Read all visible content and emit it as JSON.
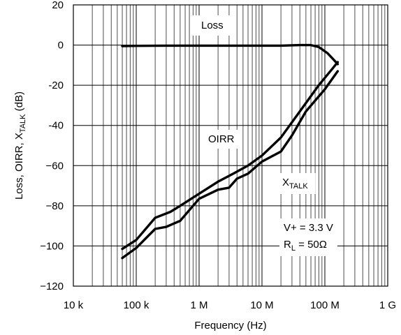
{
  "chart_data": {
    "type": "line",
    "title": "",
    "xlabel": "Frequency (Hz)",
    "ylabel_parts": {
      "main": "Loss, OIRR, X",
      "sub": "TALK",
      "unit": " (dB)"
    },
    "x_scale": "log",
    "xlim": [
      10000,
      1000000000
    ],
    "ylim": [
      -120,
      20
    ],
    "grid": true,
    "x_ticks": [
      {
        "value": 10000,
        "label": "10 k"
      },
      {
        "value": 100000,
        "label": "100 k"
      },
      {
        "value": 1000000,
        "label": "1 M"
      },
      {
        "value": 10000000,
        "label": "10 M"
      },
      {
        "value": 100000000,
        "label": "100 M"
      },
      {
        "value": 1000000000,
        "label": "1 G"
      }
    ],
    "y_ticks": [
      {
        "value": 20,
        "label": "20"
      },
      {
        "value": 0,
        "label": "0"
      },
      {
        "value": -20,
        "label": "-20"
      },
      {
        "value": -40,
        "label": "-40"
      },
      {
        "value": -60,
        "label": "−60"
      },
      {
        "value": -80,
        "label": "−80"
      },
      {
        "value": -100,
        "label": "−100"
      },
      {
        "value": -120,
        "label": "−120"
      }
    ],
    "series": [
      {
        "key": "loss",
        "x": [
          60000,
          100000,
          300000,
          1000000,
          3000000,
          10000000,
          20000000,
          40000000,
          60000000,
          80000000,
          110000000,
          140000000,
          160000000
        ],
        "y": [
          -0.5,
          -0.4,
          -0.3,
          -0.3,
          -0.3,
          -0.3,
          -0.3,
          0.0,
          0.0,
          -1.0,
          -4.0,
          -7.5,
          -9.5
        ]
      },
      {
        "key": "oirr",
        "x": [
          60000,
          100000,
          200000,
          350000,
          500000,
          1000000,
          2000000,
          3500000,
          6000000,
          10000000,
          20000000,
          40000000,
          80000000,
          130000000,
          160000000
        ],
        "y": [
          -101.5,
          -97,
          -86,
          -83,
          -80,
          -74,
          -68,
          -64,
          -60,
          -55,
          -46,
          -33,
          -20,
          -12,
          -8.5
        ]
      },
      {
        "key": "xtalk",
        "x": [
          60000,
          100000,
          200000,
          300000,
          500000,
          1000000,
          2000000,
          3000000,
          4000000,
          6000000,
          10000000,
          20000000,
          30000000,
          50000000,
          100000000,
          160000000
        ],
        "y": [
          -106,
          -101,
          -91.5,
          -90.5,
          -87.5,
          -76.5,
          -72,
          -71,
          -66.5,
          -64,
          -58,
          -53,
          -45,
          -33,
          -22,
          -13
        ]
      }
    ],
    "annotations": {
      "loss": "Loss",
      "oirr": "OIRR",
      "xtalk_main": "X",
      "xtalk_sub": "TALK",
      "cond_v": "V+ = 3.3 V",
      "cond_r_main": "R",
      "cond_r_sub": "L",
      "cond_r_value": " = 50Ω"
    },
    "colors": {
      "line": "#000000",
      "grid": "#000000",
      "background": "#ffffff"
    }
  }
}
